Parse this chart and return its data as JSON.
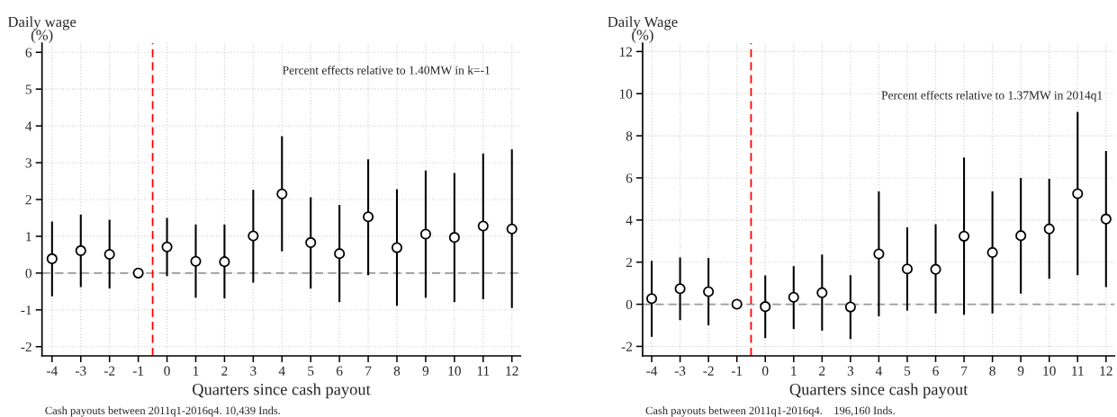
{
  "chart_data": [
    {
      "type": "scatter",
      "xlabel": "Quarters since cash payout",
      "ylabel": "Daily wage\n(%)",
      "x": [
        -4,
        -3,
        -2,
        -1,
        0,
        1,
        2,
        3,
        4,
        5,
        6,
        7,
        8,
        9,
        10,
        11,
        12
      ],
      "series": [
        {
          "color": "#000000",
          "values": [
            0.39,
            0.61,
            0.51,
            0,
            0.71,
            0.32,
            0.31,
            1.01,
            2.15,
            0.83,
            0.53,
            1.53,
            0.69,
            1.06,
            0.97,
            1.28,
            1.2
          ],
          "errors": [
            [
              -0.63,
              1.4
            ],
            [
              -0.38,
              1.59
            ],
            [
              -0.42,
              1.45
            ],
            null,
            [
              -0.08,
              1.5
            ],
            [
              -0.67,
              1.32
            ],
            [
              -0.69,
              1.32
            ],
            [
              -0.26,
              2.26
            ],
            [
              0.59,
              3.72
            ],
            [
              -0.42,
              2.06
            ],
            [
              -0.79,
              1.85
            ],
            [
              -0.06,
              3.09
            ],
            [
              -0.89,
              2.28
            ],
            [
              -0.67,
              2.79
            ],
            [
              -0.79,
              2.72
            ],
            [
              -0.71,
              3.25
            ],
            [
              -0.95,
              3.36
            ]
          ]
        }
      ],
      "xlim": [
        -4.35,
        12.3
      ],
      "xticks": [
        -4,
        -3,
        -2,
        -1,
        0,
        1,
        2,
        3,
        4,
        5,
        6,
        7,
        8,
        9,
        10,
        11,
        12
      ],
      "ylim": [
        -2.25,
        6.25
      ],
      "yticks": [
        -2,
        -1,
        0,
        1,
        2,
        3,
        4,
        5,
        6
      ],
      "grid": true,
      "marker": "circle",
      "ref_lines": [
        {
          "axis": "x",
          "value": -0.5,
          "color": "#ff0000",
          "line_style": "dashed"
        },
        {
          "axis": "y",
          "value": 0,
          "color": "#999999",
          "line_style": "dashed"
        }
      ],
      "annotations": [
        "Percent effects relative to 1.40MW in k=-1",
        "Cash payouts between 2011q1-2016q4. 10,439 Inds."
      ]
    },
    {
      "type": "scatter",
      "xlabel": "Quarters since cash payout",
      "ylabel": "Daily Wage\n(%)",
      "x": [
        -4,
        -3,
        -2,
        -1,
        0,
        1,
        2,
        3,
        4,
        5,
        6,
        7,
        8,
        9,
        10,
        11,
        12
      ],
      "series": [
        {
          "color": "#000000",
          "values": [
            0.27,
            0.74,
            0.6,
            0,
            -0.11,
            0.33,
            0.55,
            -0.13,
            2.39,
            1.68,
            1.66,
            3.23,
            2.46,
            3.26,
            3.58,
            5.25,
            4.05
          ],
          "errors": [
            [
              -1.54,
              2.06
            ],
            [
              -0.75,
              2.22
            ],
            [
              -1.0,
              2.2
            ],
            null,
            [
              -1.61,
              1.37
            ],
            [
              -1.18,
              1.81
            ],
            [
              -1.25,
              2.36
            ],
            [
              -1.65,
              1.38
            ],
            [
              -0.57,
              5.36
            ],
            [
              -0.3,
              3.65
            ],
            [
              -0.44,
              3.8
            ],
            [
              -0.5,
              6.97
            ],
            [
              -0.44,
              5.36
            ],
            [
              0.5,
              6.0
            ],
            [
              1.21,
              5.96
            ],
            [
              1.38,
              9.13
            ],
            [
              0.81,
              7.28
            ]
          ]
        }
      ],
      "xlim": [
        -4.32,
        12.3
      ],
      "xticks": [
        -4,
        -3,
        -2,
        -1,
        0,
        1,
        2,
        3,
        4,
        5,
        6,
        7,
        8,
        9,
        10,
        11,
        12
      ],
      "ylim": [
        -2.45,
        12.4
      ],
      "yticks": [
        -2,
        0,
        2,
        4,
        6,
        8,
        10,
        12
      ],
      "grid": true,
      "marker": "circle",
      "ref_lines": [
        {
          "axis": "x",
          "value": -0.5,
          "color": "#ff0000",
          "line_style": "dashed"
        },
        {
          "axis": "y",
          "value": 0,
          "color": "#999999",
          "line_style": "dashed"
        }
      ],
      "annotations": [
        "Percent effects relative to 1.37MW in 2014q1",
        "Cash payouts between 2011q1-2016q4.    196,160 Inds."
      ]
    }
  ]
}
